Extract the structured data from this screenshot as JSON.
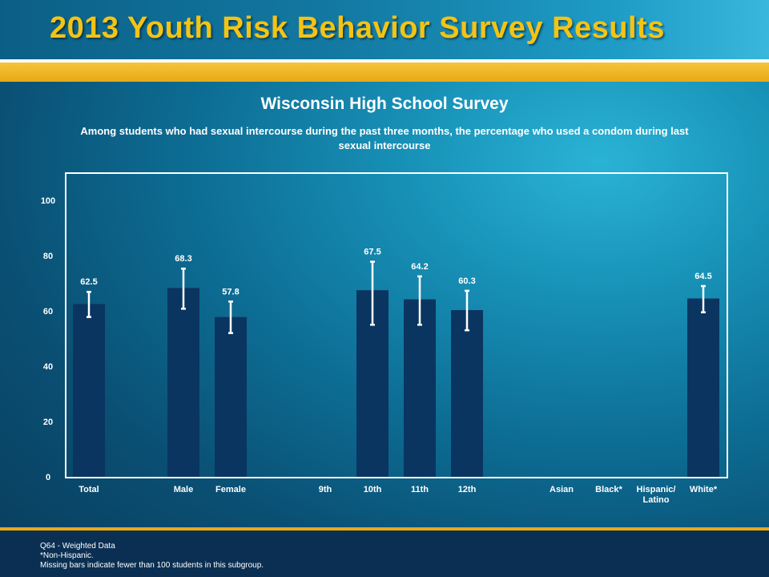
{
  "header": {
    "title": "2013 Youth Risk Behavior Survey Results"
  },
  "chart_data": {
    "type": "bar",
    "title": "Wisconsin High School Survey",
    "subtitle": "Among students who had sexual intercourse during the past three months, the percentage who used a condom during last sexual intercourse",
    "categories": [
      "Total",
      "Male",
      "Female",
      "9th",
      "10th",
      "11th",
      "12th",
      "Asian",
      "Black*",
      "Hispanic/ Latino",
      "White*"
    ],
    "category_groups": [
      [
        "Total"
      ],
      [
        "Male",
        "Female"
      ],
      [
        "9th",
        "10th",
        "11th",
        "12th"
      ],
      [
        "Asian",
        "Black*",
        "Hispanic/ Latino",
        "White*"
      ]
    ],
    "values": [
      62.5,
      68.3,
      57.8,
      null,
      67.5,
      64.2,
      60.3,
      null,
      null,
      null,
      64.5
    ],
    "error_bars": [
      [
        57.8,
        66.9
      ],
      [
        60.8,
        75.3
      ],
      [
        52.0,
        63.4
      ],
      null,
      [
        55.0,
        77.8
      ],
      [
        55.0,
        72.5
      ],
      [
        53.0,
        67.3
      ],
      null,
      null,
      null,
      [
        59.5,
        69.0
      ]
    ],
    "value_labels": [
      "62.5",
      "68.3",
      "57.8",
      "",
      "67.5",
      "64.2",
      "60.3",
      "",
      "",
      "",
      "64.5"
    ],
    "ylim": [
      0,
      110
    ],
    "yticks": [
      0,
      20,
      40,
      60,
      80,
      100
    ],
    "grid": false,
    "colors": {
      "bar": "#0a3560",
      "error_bar": "#ffffff",
      "frame": "#ffffff",
      "text": "#ffffff"
    }
  },
  "footer": {
    "lines": [
      "Q64 - Weighted Data",
      "*Non-Hispanic.",
      "Missing bars indicate fewer than 100 students in this subgroup."
    ]
  }
}
